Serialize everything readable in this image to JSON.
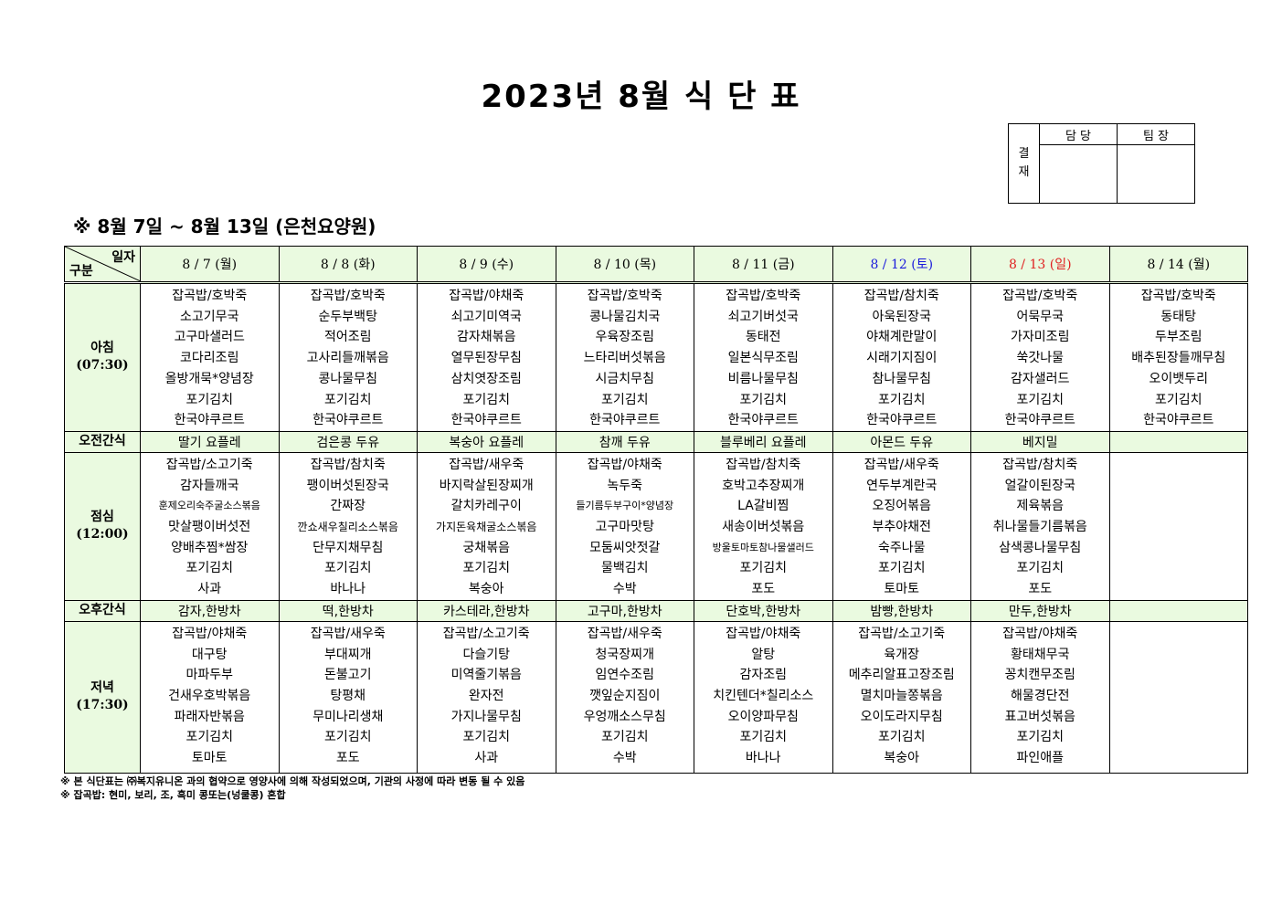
{
  "title": "2023년 8월 식 단 표",
  "approval": {
    "side_label": "결\n재",
    "col1": "담 당",
    "col2": "팀 장"
  },
  "subtitle": "※ 8월 7일 ~ 8월 13일 (은천요양원)",
  "corner": {
    "top": "일자",
    "bottom": "구분"
  },
  "colors": {
    "header_bg": "#eafae0",
    "saturday": "#1a1adc",
    "sunday": "#e02020"
  },
  "rows": {
    "breakfast": {
      "name": "아침",
      "time": "(07:30)"
    },
    "am_snack": {
      "name": "오전간식"
    },
    "lunch": {
      "name": "점심",
      "time": "(12:00)"
    },
    "pm_snack": {
      "name": "오후간식"
    },
    "dinner": {
      "name": "저녁",
      "time": "(17:30)"
    }
  },
  "days": [
    {
      "date": "8 / 7 (월)",
      "type": "weekday",
      "breakfast": [
        "잡곡밥/호박죽",
        "소고기무국",
        "고구마샐러드",
        "코다리조림",
        "올방개묵*양념장",
        "포기김치",
        "한국야쿠르트"
      ],
      "am_snack": "딸기 요플레",
      "lunch": [
        "잡곡밥/소고기죽",
        "감자들깨국",
        "훈제오리숙주굴소스볶음",
        "맛살팽이버섯전",
        "양배추찜*쌈장",
        "포기김치",
        "사과"
      ],
      "pm_snack": "감자,한방차",
      "dinner": [
        "잡곡밥/야채죽",
        "대구탕",
        "마파두부",
        "건새우호박볶음",
        "파래자반볶음",
        "포기김치",
        "토마토"
      ]
    },
    {
      "date": "8 / 8 (화)",
      "type": "weekday",
      "breakfast": [
        "잡곡밥/호박죽",
        "순두부백탕",
        "적어조림",
        "고사리들깨볶음",
        "콩나물무침",
        "포기김치",
        "한국야쿠르트"
      ],
      "am_snack": "검은콩 두유",
      "lunch": [
        "잡곡밥/참치죽",
        "팽이버섯된장국",
        "간짜장",
        "깐쇼새우칠리소스볶음",
        "단무지채무침",
        "포기김치",
        "바나나"
      ],
      "pm_snack": "떡,한방차",
      "dinner": [
        "잡곡밥/새우죽",
        "부대찌개",
        "돈불고기",
        "탕평채",
        "무미나리생채",
        "포기김치",
        "포도"
      ]
    },
    {
      "date": "8 / 9 (수)",
      "type": "weekday",
      "breakfast": [
        "잡곡밥/야채죽",
        "쇠고기미역국",
        "감자채볶음",
        "열무된장무침",
        "삼치엿장조림",
        "포기김치",
        "한국야쿠르트"
      ],
      "am_snack": "복숭아 요플레",
      "lunch": [
        "잡곡밥/새우죽",
        "바지락살된장찌개",
        "갈치카레구이",
        "가지돈육채굴소스볶음",
        "궁채볶음",
        "포기김치",
        "복숭아"
      ],
      "pm_snack": "카스테라,한방차",
      "dinner": [
        "잡곡밥/소고기죽",
        "다슬기탕",
        "미역줄기볶음",
        "완자전",
        "가지나물무침",
        "포기김치",
        "사과"
      ]
    },
    {
      "date": "8 / 10 (목)",
      "type": "weekday",
      "breakfast": [
        "잡곡밥/호박죽",
        "콩나물김치국",
        "우육장조림",
        "느타리버섯볶음",
        "시금치무침",
        "포기김치",
        "한국야쿠르트"
      ],
      "am_snack": "참깨 두유",
      "lunch": [
        "잡곡밥/야채죽",
        "녹두죽",
        "들기름두부구이*양념장",
        "고구마맛탕",
        "모둠씨앗젓갈",
        "물백김치",
        "수박"
      ],
      "pm_snack": "고구마,한방차",
      "dinner": [
        "잡곡밥/새우죽",
        "청국장찌개",
        "임연수조림",
        "깻잎순지짐이",
        "우엉깨소스무침",
        "포기김치",
        "수박"
      ]
    },
    {
      "date": "8 / 11 (금)",
      "type": "weekday",
      "breakfast": [
        "잡곡밥/호박죽",
        "쇠고기버섯국",
        "동태전",
        "일본식무조림",
        "비름나물무침",
        "포기김치",
        "한국야쿠르트"
      ],
      "am_snack": "블루베리 요플레",
      "lunch": [
        "잡곡밥/참치죽",
        "호박고추장찌개",
        "LA갈비찜",
        "새송이버섯볶음",
        "방울토마토참나물샐러드",
        "포기김치",
        "포도"
      ],
      "pm_snack": "단호박,한방차",
      "dinner": [
        "잡곡밥/야채죽",
        "알탕",
        "감자조림",
        "치킨텐더*칠리소스",
        "오이양파무침",
        "포기김치",
        "바나나"
      ]
    },
    {
      "date": "8 / 12 (토)",
      "type": "saturday",
      "breakfast": [
        "잡곡밥/참치죽",
        "아욱된장국",
        "야채계란말이",
        "시래기지짐이",
        "참나물무침",
        "포기김치",
        "한국야쿠르트"
      ],
      "am_snack": "아몬드 두유",
      "lunch": [
        "잡곡밥/새우죽",
        "연두부계란국",
        "오징어볶음",
        "부추야채전",
        "숙주나물",
        "포기김치",
        "토마토"
      ],
      "pm_snack": "밤빵,한방차",
      "dinner": [
        "잡곡밥/소고기죽",
        "육개장",
        "메추리알표고장조림",
        "멸치마늘쫑볶음",
        "오이도라지무침",
        "포기김치",
        "복숭아"
      ]
    },
    {
      "date": "8 / 13 (일)",
      "type": "sunday",
      "breakfast": [
        "잡곡밥/호박죽",
        "어묵무국",
        "가자미조림",
        "쑥갓나물",
        "감자샐러드",
        "포기김치",
        "한국야쿠르트"
      ],
      "am_snack": "베지밀",
      "lunch": [
        "잡곡밥/참치죽",
        "얼갈이된장국",
        "제육볶음",
        "취나물들기름볶음",
        "삼색콩나물무침",
        "포기김치",
        "포도"
      ],
      "pm_snack": "만두,한방차",
      "dinner": [
        "잡곡밥/야채죽",
        "황태채무국",
        "꽁치캔무조림",
        "해물경단전",
        "표고버섯볶음",
        "포기김치",
        "파인애플"
      ]
    },
    {
      "date": "8 / 14 (월)",
      "type": "weekday",
      "breakfast": [
        "잡곡밥/호박죽",
        "동태탕",
        "두부조림",
        "배추된장들깨무침",
        "오이뱃두리",
        "포기김치",
        "한국야쿠르트"
      ],
      "am_snack": "",
      "lunch": [],
      "pm_snack": "",
      "dinner": []
    }
  ],
  "notes": [
    "※ 본 식단표는 ㈜복지유니온 과의 협약으로 영양사에 의해 작성되었으며, 기관의 사정에 따라 변동 될 수 있음",
    "※ 잡곡밥: 현미, 보리, 조, 흑미 콩또는(넝쿨콩) 혼합"
  ]
}
